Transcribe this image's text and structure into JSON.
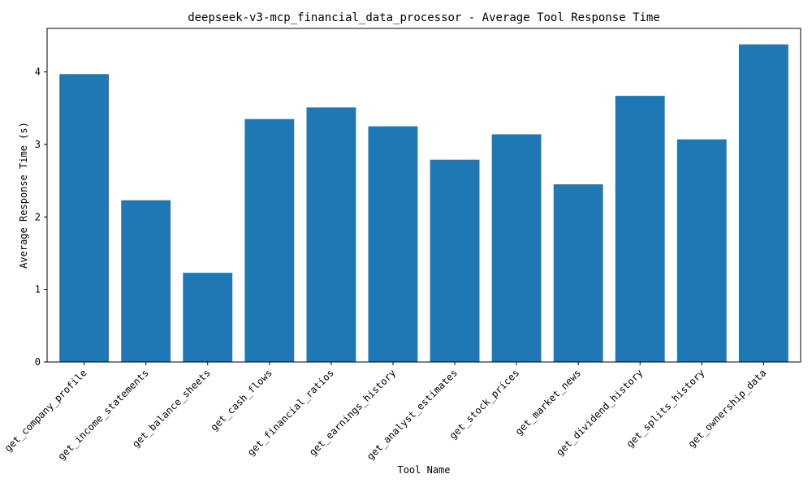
{
  "chart_data": {
    "type": "bar",
    "title": "deepseek-v3-mcp_financial_data_processor - Average Tool Response Time",
    "xlabel": "Tool Name",
    "ylabel": "Average Response Time (s)",
    "categories": [
      "get_company_profile",
      "get_income_statements",
      "get_balance_sheets",
      "get_cash_flows",
      "get_financial_ratios",
      "get_earnings_history",
      "get_analyst_estimates",
      "get_stock_prices",
      "get_market_news",
      "get_dividend_history",
      "get_splits_history",
      "get_ownership_data"
    ],
    "values": [
      3.97,
      2.23,
      1.23,
      3.35,
      3.51,
      3.25,
      2.79,
      3.14,
      2.45,
      3.67,
      3.07,
      4.38
    ],
    "ylim": [
      0,
      4.6
    ],
    "yticks": [
      0,
      1,
      2,
      3,
      4
    ],
    "bar_color": "#1f77b4",
    "grid": false,
    "legend": "none"
  }
}
